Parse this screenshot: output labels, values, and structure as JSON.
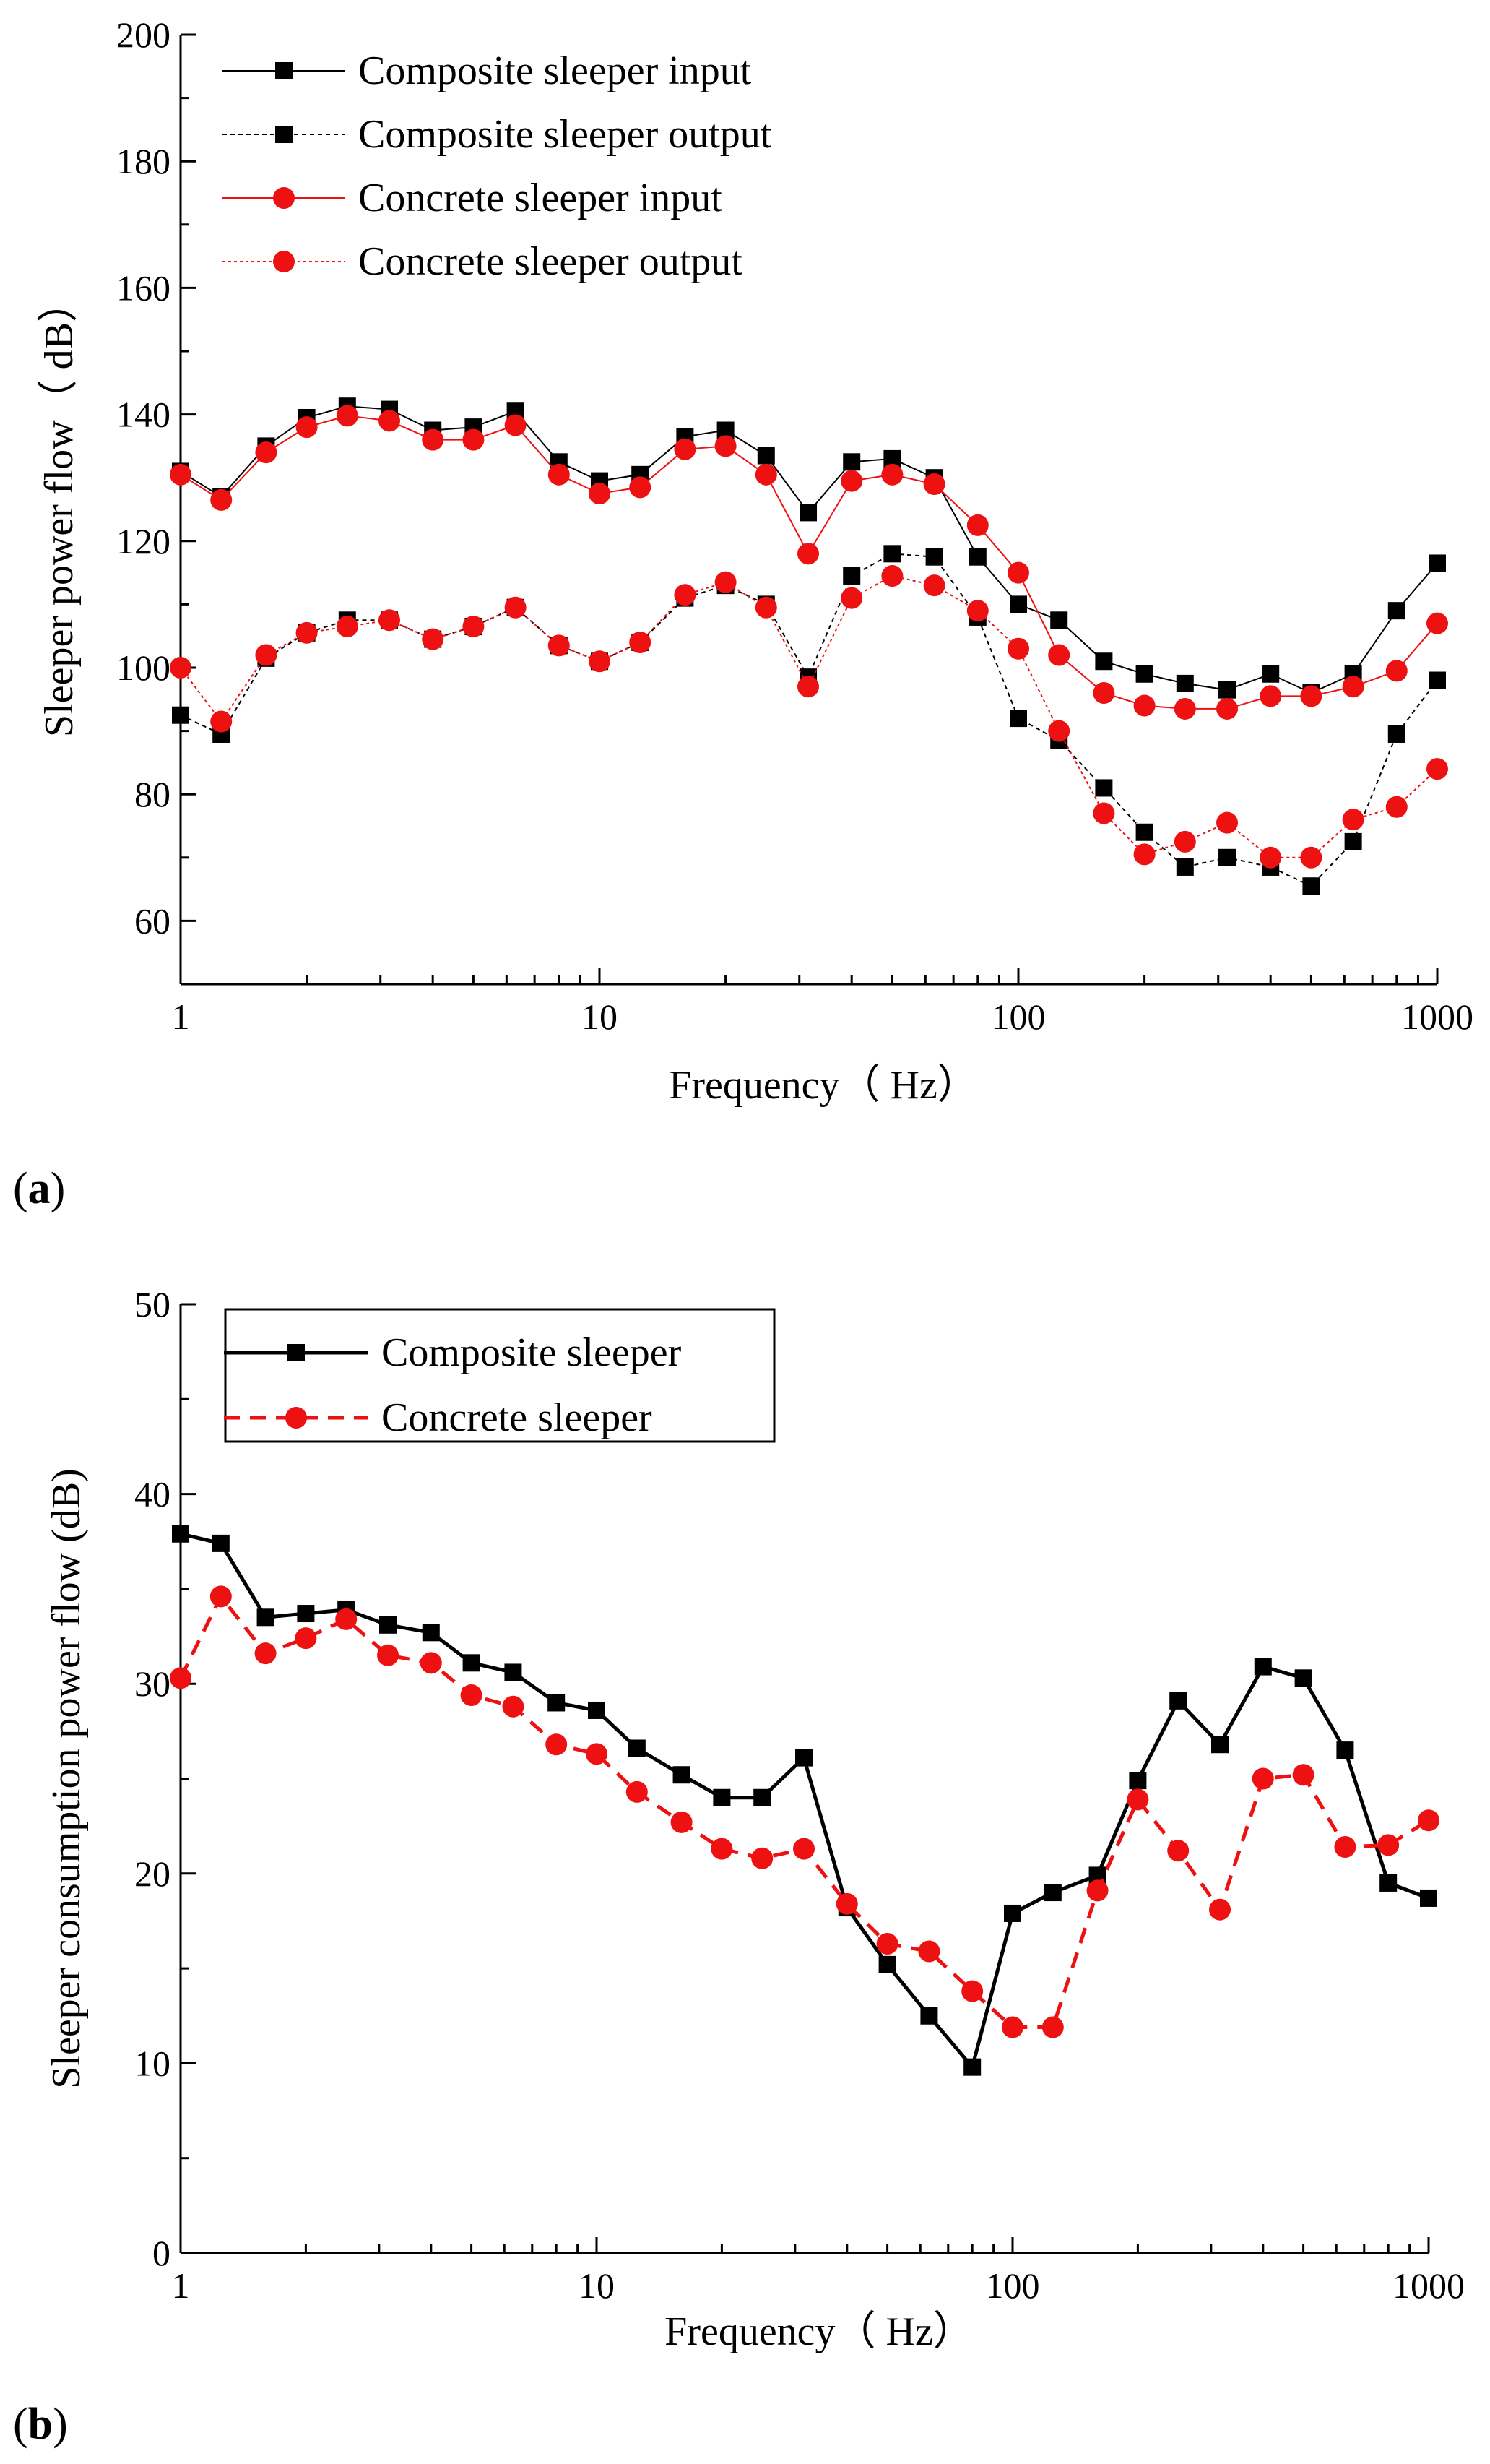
{
  "panels": [
    {
      "label_open": "(",
      "label_letter": "a",
      "label_close": ")"
    },
    {
      "label_open": "(",
      "label_letter": "b",
      "label_close": ")"
    }
  ],
  "chart_data": [
    {
      "type": "line",
      "xlabel": "Frequency（ Hz）",
      "ylabel": "Sleeper power flow（ dB）",
      "xscale": "log",
      "xlim": [
        1,
        1000
      ],
      "ylim": [
        50,
        200
      ],
      "yticks": [
        60,
        80,
        100,
        120,
        140,
        160,
        180,
        200
      ],
      "xticks": [
        1,
        10,
        100,
        1000
      ],
      "xtick_labels": [
        "1",
        "10",
        "100",
        "1000"
      ],
      "legend_position": "top-left",
      "x": [
        1,
        1.25,
        1.6,
        2,
        2.5,
        3.15,
        4,
        5,
        6.3,
        8,
        10,
        12.5,
        16,
        20,
        25,
        31.5,
        40,
        50,
        63,
        80,
        100,
        125,
        160,
        200,
        250,
        315,
        400,
        500,
        630,
        800,
        1000
      ],
      "series": [
        {
          "name": "Composite sleeper input",
          "color": "#000000",
          "marker": "square",
          "dash": "solid",
          "values": [
            131,
            127,
            135,
            139.5,
            141.3,
            140.8,
            137.5,
            138,
            140.5,
            132.5,
            129.5,
            130.5,
            136.5,
            137.5,
            133.5,
            124.5,
            132.5,
            133,
            130,
            117.5,
            110,
            107.5,
            101,
            99,
            97.5,
            96.5,
            99,
            96,
            99,
            109,
            116.5
          ]
        },
        {
          "name": "Composite sleeper output",
          "color": "#000000",
          "marker": "square",
          "dash": "dashed",
          "values": [
            92.5,
            89.5,
            101.5,
            105.5,
            107.5,
            107.5,
            104.5,
            106.5,
            109.5,
            103.5,
            101,
            104,
            111,
            113,
            110,
            98.5,
            114.5,
            118,
            117.5,
            108,
            92,
            88.5,
            81,
            74,
            68.5,
            70,
            68.5,
            65.5,
            72.5,
            89.5,
            98
          ]
        },
        {
          "name": "Concrete sleeper input",
          "color": "#ee1111",
          "marker": "circle",
          "dash": "solid",
          "values": [
            130.5,
            126.5,
            134,
            138,
            139.8,
            139,
            136,
            136,
            138.3,
            130.5,
            127.5,
            128.5,
            134.5,
            135,
            130.5,
            118,
            129.5,
            130.5,
            129,
            122.5,
            115,
            102,
            96,
            94,
            93.5,
            93.5,
            95.5,
            95.5,
            97,
            99.5,
            107
          ]
        },
        {
          "name": "Concrete sleeper output",
          "color": "#ee1111",
          "marker": "circle",
          "dash": "dotted",
          "values": [
            100,
            91.5,
            102,
            105.5,
            106.5,
            107.5,
            104.5,
            106.5,
            109.5,
            103.5,
            101,
            104,
            111.5,
            113.5,
            109.5,
            97,
            111,
            114.5,
            113,
            109,
            103,
            90,
            77,
            70.5,
            72.5,
            75.5,
            70,
            70,
            76,
            78,
            84
          ]
        }
      ]
    },
    {
      "type": "line",
      "xlabel": "Frequency（ Hz）",
      "ylabel": "Sleeper consumption power flow (dB)",
      "xscale": "log",
      "xlim": [
        1,
        1000
      ],
      "ylim": [
        0,
        50
      ],
      "yticks": [
        0,
        10,
        20,
        30,
        40,
        50
      ],
      "xticks": [
        1,
        10,
        100,
        1000
      ],
      "xtick_labels": [
        "1",
        "10",
        "100",
        "1000"
      ],
      "legend_position": "top-left",
      "x": [
        1,
        1.25,
        1.6,
        2,
        2.5,
        3.15,
        4,
        5,
        6.3,
        8,
        10,
        12.5,
        16,
        20,
        25,
        31.5,
        40,
        50,
        63,
        80,
        100,
        125,
        160,
        200,
        250,
        315,
        400,
        500,
        630,
        800,
        1000
      ],
      "series": [
        {
          "name": "Composite sleeper",
          "color": "#000000",
          "marker": "square",
          "dash": "solid",
          "values": [
            37.9,
            37.4,
            33.5,
            33.7,
            33.9,
            33.1,
            32.7,
            31.1,
            30.6,
            29,
            28.6,
            26.6,
            25.2,
            24,
            24,
            26.1,
            18.2,
            15.2,
            12.5,
            9.8,
            17.9,
            19,
            19.9,
            24.9,
            29.1,
            26.8,
            30.9,
            30.3,
            26.5,
            19.5,
            18.7
          ]
        },
        {
          "name": "Concrete sleeper",
          "color": "#ee1111",
          "marker": "circle",
          "dash": "dashed",
          "values": [
            30.3,
            34.6,
            31.6,
            32.4,
            33.4,
            31.5,
            31.1,
            29.4,
            28.8,
            26.8,
            26.3,
            24.3,
            22.7,
            21.3,
            20.8,
            21.3,
            18.4,
            16.3,
            15.9,
            13.8,
            11.9,
            11.9,
            19.1,
            23.9,
            21.2,
            18.1,
            25,
            25.2,
            21.4,
            21.5,
            22.8
          ]
        }
      ]
    }
  ]
}
